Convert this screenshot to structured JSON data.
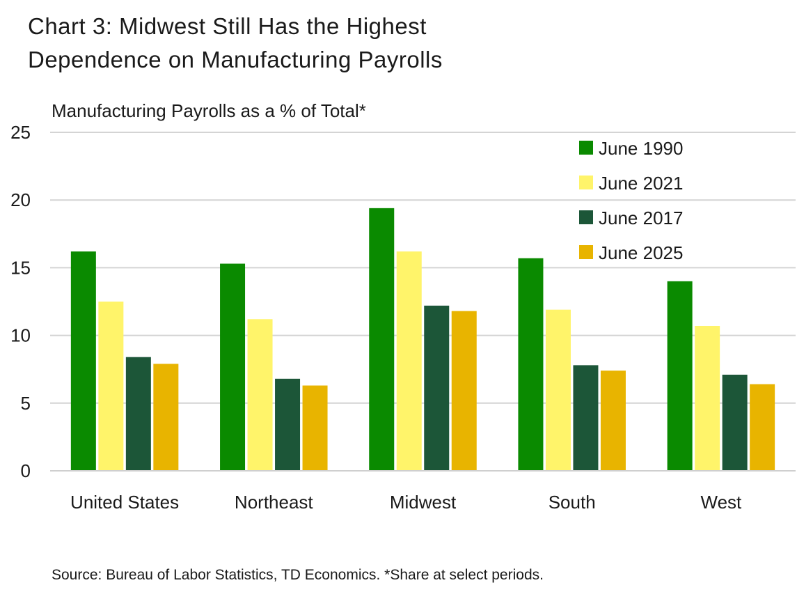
{
  "chart_data": {
    "type": "bar",
    "title_line1": "Chart 3: Midwest Still Has the Highest",
    "title_line2": "Dependence on Manufacturing Payrolls",
    "ylabel": "Manufacturing Payrolls as a % of Total*",
    "xlabel": "",
    "ylim": [
      0,
      25
    ],
    "yticks": [
      0,
      5,
      10,
      15,
      20,
      25
    ],
    "grid": true,
    "legend_position": "top-right",
    "categories": [
      "United States",
      "Northeast",
      "Midwest",
      "South",
      "West"
    ],
    "series": [
      {
        "name": "June 1990",
        "color": "#0a8a00",
        "values": [
          16.2,
          15.3,
          19.4,
          15.7,
          14.0
        ]
      },
      {
        "name": "June 2021",
        "color": "#fff46a",
        "values": [
          12.5,
          11.2,
          16.2,
          11.9,
          10.7
        ]
      },
      {
        "name": "June 2017",
        "color": "#1c5638",
        "values": [
          8.4,
          6.8,
          12.2,
          7.8,
          7.1
        ]
      },
      {
        "name": "June 2025",
        "color": "#e8b400",
        "values": [
          7.9,
          6.3,
          11.8,
          7.4,
          6.4
        ]
      }
    ],
    "source": "Source: Bureau of Labor Statistics, TD Economics. *Share at select periods."
  }
}
